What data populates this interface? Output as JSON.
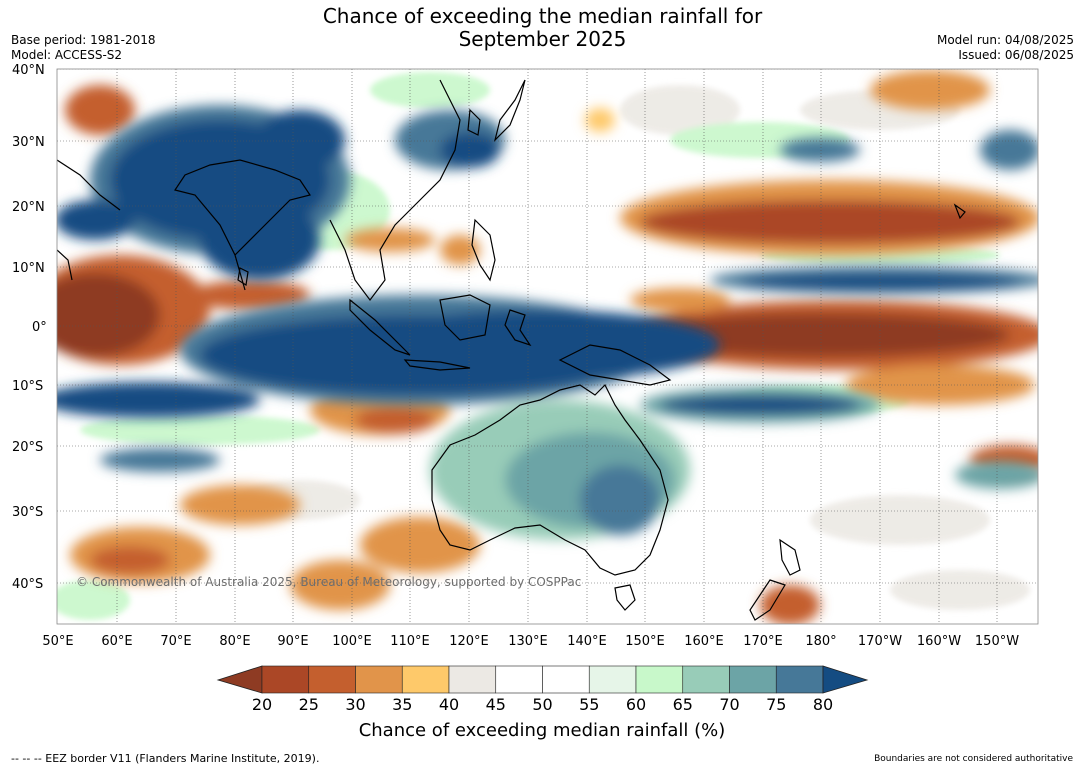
{
  "header": {
    "title_line1": "Chance of exceeding the median rainfall for",
    "title_line2": "September 2025",
    "base_period": "Base period: 1981-2018",
    "model": "Model: ACCESS-S2",
    "model_run": "Model run: 04/08/2025",
    "issued": "Issued: 06/08/2025"
  },
  "map": {
    "lat_labels": [
      "40°N",
      "30°N",
      "20°N",
      "10°N",
      "0°",
      "10°S",
      "20°S",
      "30°S",
      "40°S"
    ],
    "lon_labels": [
      "50°E",
      "60°E",
      "70°E",
      "80°E",
      "90°E",
      "100°E",
      "110°E",
      "120°E",
      "130°E",
      "140°E",
      "150°E",
      "160°E",
      "170°E",
      "180°",
      "170°W",
      "160°W",
      "150°W"
    ],
    "copyright": "© Commonwealth of Australia 2025, Bureau of Meteorology, supported by COSPPac",
    "ocean_color": "#ffffff",
    "gridline": "dotted"
  },
  "colorbar": {
    "ticks": [
      "20",
      "25",
      "30",
      "35",
      "40",
      "45",
      "50",
      "55",
      "60",
      "65",
      "70",
      "75",
      "80"
    ],
    "colors": [
      "#8e3b23",
      "#ab4726",
      "#c45f2e",
      "#e1944a",
      "#fec96a",
      "#ece9e4",
      "#ffffff",
      "#ffffff",
      "#e6f5e8",
      "#c8f8ca",
      "#98ccb8",
      "#6ca4a6",
      "#467898",
      "#144c82"
    ],
    "label": "Chance of exceeding median rainfall (%)"
  },
  "footer": {
    "eez_note": "--  --  -- EEZ border V11 (Flanders Marine Institute, 2019).",
    "boundaries_note": "Boundaries are not considered authoritative"
  }
}
